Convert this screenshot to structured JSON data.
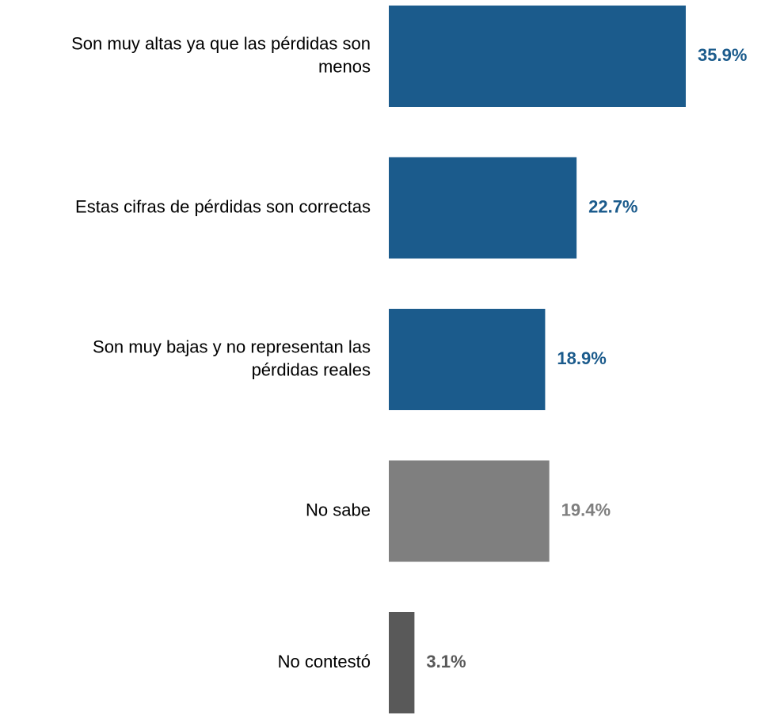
{
  "chart_data": {
    "type": "bar",
    "orientation": "horizontal",
    "categories": [
      "Son muy altas ya que las pérdidas son menos",
      "Estas cifras de pérdidas son correctas",
      "Son muy bajas y no representan las pérdidas reales",
      "No sabe",
      "No contestó"
    ],
    "category_lines": [
      [
        "Son muy altas ya que las pérdidas son",
        "menos"
      ],
      [
        "Estas cifras de pérdidas son correctas"
      ],
      [
        "Son muy bajas y no representan las",
        "pérdidas reales"
      ],
      [
        "No sabe"
      ],
      [
        "No contestó"
      ]
    ],
    "values": [
      35.9,
      22.7,
      18.9,
      19.4,
      3.1
    ],
    "value_labels": [
      "35.9%",
      "22.7%",
      "18.9%",
      "19.4%",
      "3.1%"
    ],
    "bar_colors": [
      "#1b5b8c",
      "#1b5b8c",
      "#1b5b8c",
      "#7f7f7f",
      "#595959"
    ],
    "label_colors": [
      "#1b5b8c",
      "#1b5b8c",
      "#1b5b8c",
      "#7f7f7f",
      "#595959"
    ],
    "xlim": [
      0,
      36
    ],
    "grid": false,
    "legend": "none"
  }
}
